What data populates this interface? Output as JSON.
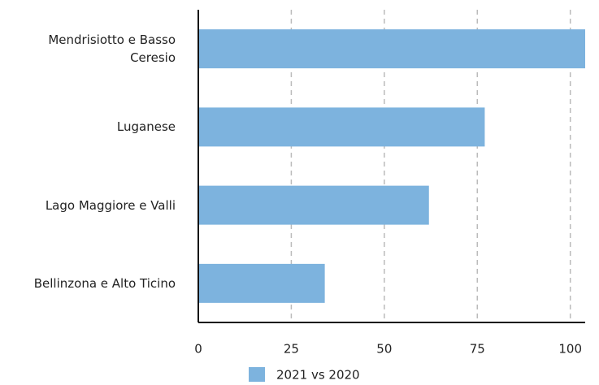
{
  "chart_data": {
    "type": "bar",
    "orientation": "horizontal",
    "categories": [
      "Mendrisiotto e Basso Ceresio",
      "Luganese",
      "Lago Maggiore e Valli",
      "Bellinzona e Alto Ticino"
    ],
    "series": [
      {
        "name": "2021 vs 2020",
        "color": "#7db3de",
        "values": [
          104,
          77,
          62,
          34
        ]
      }
    ],
    "xlim": [
      0,
      104
    ],
    "xticks": [
      0,
      25,
      50,
      75,
      100
    ],
    "grid": true,
    "legend": "bottom"
  }
}
